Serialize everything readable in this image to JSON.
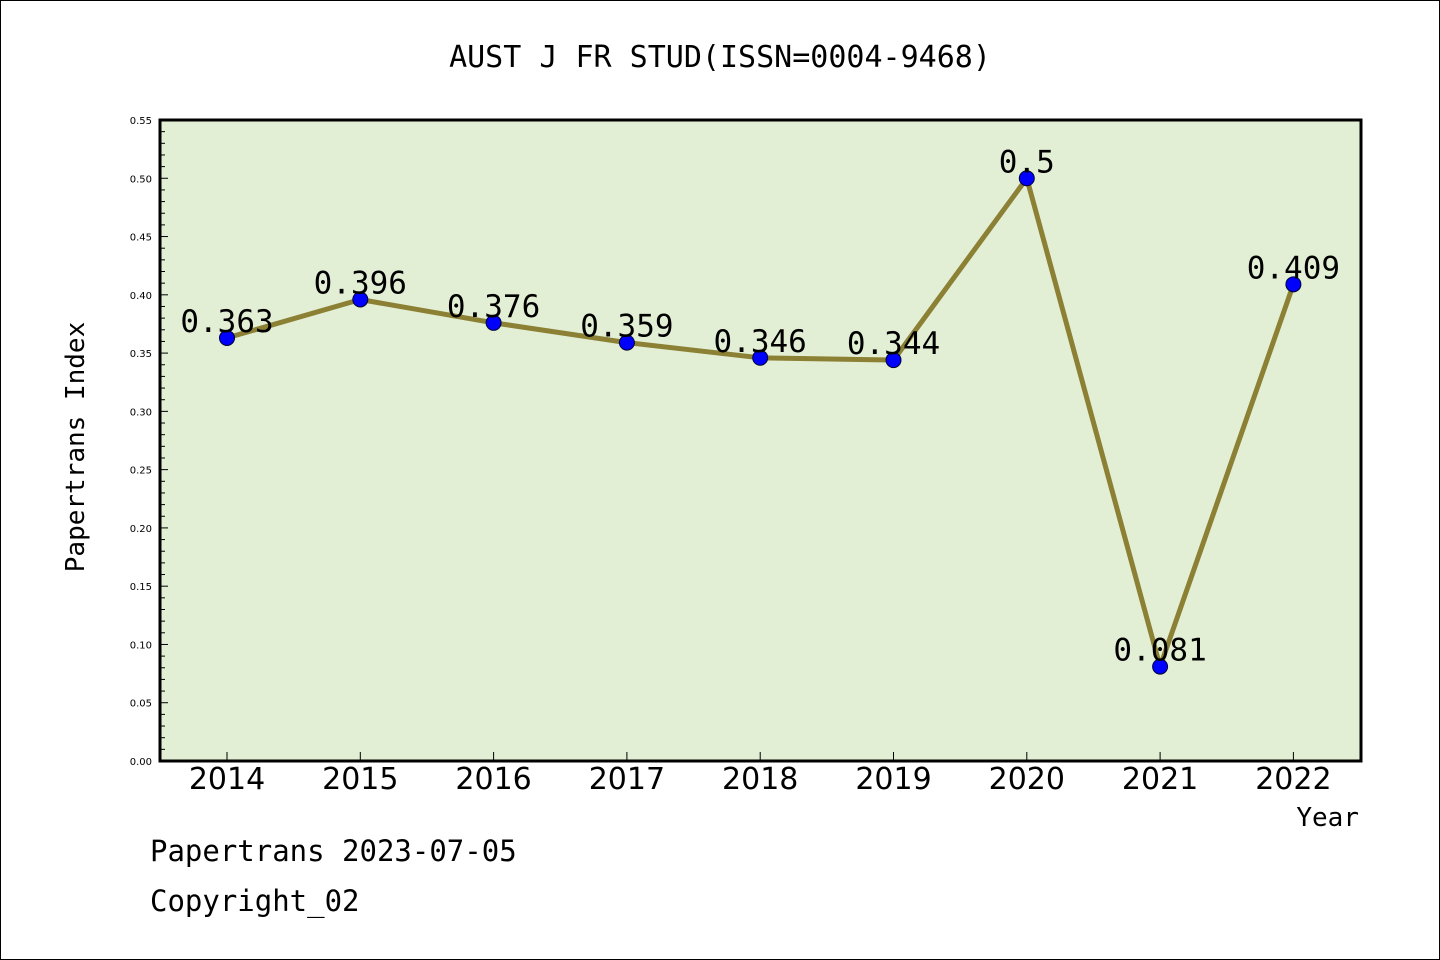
{
  "chart_data": {
    "type": "line",
    "title": "AUST J FR STUD(ISSN=0004-9468)",
    "xlabel": "Year",
    "ylabel": "Papertrans Index",
    "categories": [
      "2014",
      "2015",
      "2016",
      "2017",
      "2018",
      "2019",
      "2020",
      "2021",
      "2022"
    ],
    "series": [
      {
        "values": [
          0.363,
          0.396,
          0.376,
          0.359,
          0.346,
          0.344,
          0.5,
          0.081,
          0.409
        ],
        "labels": [
          "0.363",
          "0.396",
          "0.376",
          "0.359",
          "0.346",
          "0.344",
          "0.5",
          "0.081",
          "0.409"
        ]
      }
    ],
    "ylim": [
      0,
      0.55
    ],
    "yticks": [
      "0.00",
      "0.05",
      "0.10",
      "0.15",
      "0.20",
      "0.25",
      "0.30",
      "0.35",
      "0.40",
      "0.45",
      "0.50",
      "0.55"
    ],
    "grid": false,
    "colors": {
      "plot_background": "#e2efd5",
      "line": "#8b8033",
      "marker": "#0000ff"
    }
  },
  "footer": {
    "line1": "Papertrans 2023-07-05",
    "line2": "Copyright_02"
  }
}
